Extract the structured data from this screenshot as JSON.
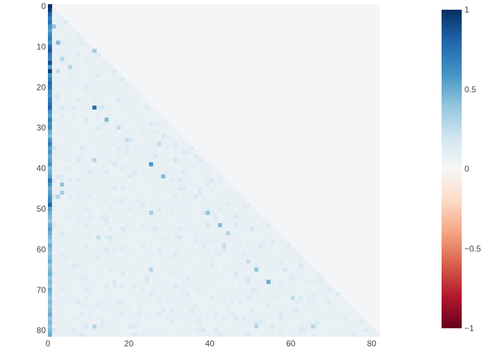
{
  "chart_data": {
    "type": "heatmap",
    "title": "",
    "xlabel": "",
    "ylabel": "",
    "n": 82,
    "x_range": [
      0,
      81
    ],
    "y_range": [
      0,
      81
    ],
    "y_reversed": true,
    "x_ticks": [
      0,
      20,
      40,
      60,
      80
    ],
    "y_ticks": [
      0,
      10,
      20,
      30,
      40,
      50,
      60,
      70,
      80
    ],
    "x_tick_labels": [
      "0",
      "20",
      "40",
      "60",
      "80"
    ],
    "y_tick_labels": [
      "0",
      "10",
      "20",
      "30",
      "40",
      "50",
      "60",
      "70",
      "80"
    ],
    "shape": "lower-triangular",
    "background_value": 0.02,
    "column0_values": [
      1.0,
      0.95,
      0.8,
      0.7,
      0.75,
      0.6,
      0.55,
      0.65,
      0.7,
      0.6,
      0.8,
      0.85,
      0.7,
      0.65,
      0.9,
      0.55,
      0.95,
      0.6,
      0.7,
      0.8,
      0.75,
      0.65,
      0.6,
      0.7,
      0.75,
      0.8,
      0.6,
      0.55,
      0.7,
      0.6,
      0.65,
      0.5,
      0.45,
      0.6,
      0.7,
      0.55,
      0.6,
      0.5,
      0.55,
      0.6,
      0.45,
      0.5,
      0.55,
      0.75,
      0.6,
      0.5,
      0.55,
      0.6,
      0.65,
      0.8,
      0.55,
      0.5,
      0.45,
      0.4,
      0.5,
      0.55,
      0.5,
      0.45,
      0.4,
      0.5,
      0.45,
      0.4,
      0.45,
      0.5,
      0.4,
      0.45,
      0.5,
      0.4,
      0.45,
      0.4,
      0.5,
      0.45,
      0.4,
      0.45,
      0.4,
      0.45,
      0.5,
      0.4,
      0.45,
      0.4,
      0.45,
      0.5
    ],
    "highlight_cells": [
      {
        "row": 5,
        "col": 1,
        "value": 0.4
      },
      {
        "row": 9,
        "col": 2,
        "value": 0.45
      },
      {
        "row": 11,
        "col": 11,
        "value": 0.35
      },
      {
        "row": 13,
        "col": 3,
        "value": 0.3
      },
      {
        "row": 15,
        "col": 5,
        "value": 0.3
      },
      {
        "row": 16,
        "col": 2,
        "value": 0.25
      },
      {
        "row": 25,
        "col": 11,
        "value": 0.75
      },
      {
        "row": 28,
        "col": 14,
        "value": 0.45
      },
      {
        "row": 39,
        "col": 25,
        "value": 0.6
      },
      {
        "row": 38,
        "col": 11,
        "value": 0.3
      },
      {
        "row": 42,
        "col": 28,
        "value": 0.45
      },
      {
        "row": 44,
        "col": 3,
        "value": 0.4
      },
      {
        "row": 46,
        "col": 3,
        "value": 0.35
      },
      {
        "row": 47,
        "col": 2,
        "value": 0.3
      },
      {
        "row": 51,
        "col": 25,
        "value": 0.35
      },
      {
        "row": 51,
        "col": 39,
        "value": 0.4
      },
      {
        "row": 54,
        "col": 42,
        "value": 0.45
      },
      {
        "row": 56,
        "col": 44,
        "value": 0.3
      },
      {
        "row": 65,
        "col": 51,
        "value": 0.4
      },
      {
        "row": 65,
        "col": 25,
        "value": 0.3
      },
      {
        "row": 68,
        "col": 54,
        "value": 0.5
      },
      {
        "row": 79,
        "col": 11,
        "value": 0.3
      },
      {
        "row": 79,
        "col": 51,
        "value": 0.3
      },
      {
        "row": 79,
        "col": 65,
        "value": 0.3
      },
      {
        "row": 30,
        "col": 17,
        "value": 0.25
      },
      {
        "row": 33,
        "col": 19,
        "value": 0.25
      },
      {
        "row": 34,
        "col": 27,
        "value": 0.25
      },
      {
        "row": 57,
        "col": 12,
        "value": 0.25
      },
      {
        "row": 59,
        "col": 43,
        "value": 0.25
      },
      {
        "row": 63,
        "col": 49,
        "value": 0.25
      },
      {
        "row": 72,
        "col": 60,
        "value": 0.25
      }
    ],
    "colorscale": "RdBu",
    "zmin": -1,
    "zmax": 1,
    "colorbar": {
      "ticks": [
        1,
        0.5,
        0,
        -0.5,
        -1
      ],
      "tick_labels": [
        "1",
        "0.5",
        "0",
        "−0.5",
        "−1"
      ],
      "stops": [
        "#67001f",
        "#b2182b",
        "#d6604d",
        "#f4a582",
        "#fddbc7",
        "#f7f7f7",
        "#d1e5f0",
        "#92c5de",
        "#4393c3",
        "#2166ac",
        "#053061"
      ]
    }
  }
}
